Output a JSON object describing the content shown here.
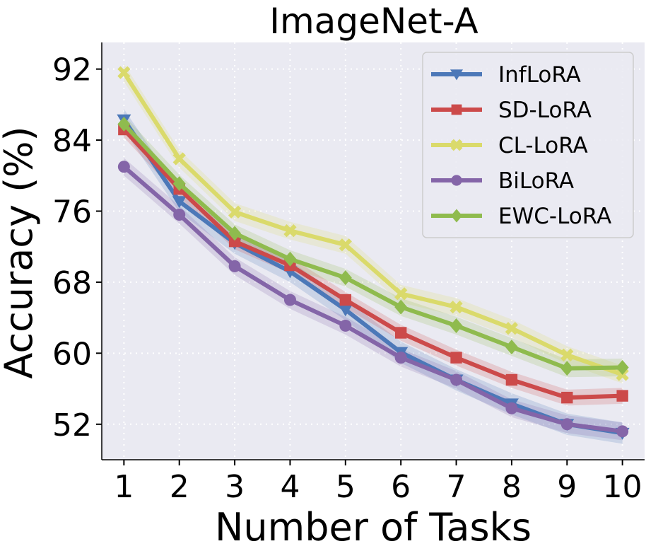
{
  "chart_data": {
    "type": "line",
    "title": "ImageNet-A",
    "xlabel": "Number of Tasks",
    "ylabel": "Accuracy (%)",
    "x": [
      1,
      2,
      3,
      4,
      5,
      6,
      7,
      8,
      9,
      10
    ],
    "xlim": [
      0.6,
      10.4
    ],
    "ylim": [
      48.0,
      95.0
    ],
    "xticks": [
      "1",
      "2",
      "3",
      "4",
      "5",
      "6",
      "7",
      "8",
      "9",
      "10"
    ],
    "yticks": [
      52,
      60,
      68,
      76,
      84,
      92
    ],
    "grid": true,
    "legend_position": "top-right",
    "series": [
      {
        "name": "InfLoRA",
        "marker": "triangle-down",
        "color": "#4c78b8",
        "values": [
          86.3,
          77.1,
          72.4,
          69.2,
          64.9,
          60.1,
          57.0,
          54.3,
          52.0,
          51.0
        ],
        "band": 1.2
      },
      {
        "name": "SD-LoRA",
        "marker": "square",
        "color": "#cc4a4a",
        "values": [
          85.2,
          78.5,
          72.6,
          69.9,
          66.0,
          62.3,
          59.5,
          57.0,
          55.0,
          55.2
        ],
        "band": 0.9
      },
      {
        "name": "CL-LoRA",
        "marker": "x",
        "color": "#dada6b",
        "values": [
          91.6,
          81.9,
          75.9,
          73.8,
          72.2,
          66.7,
          65.2,
          62.8,
          59.8,
          57.6
        ],
        "band": 1.0
      },
      {
        "name": "BiLoRA",
        "marker": "circle",
        "color": "#8465a8",
        "values": [
          81.0,
          75.6,
          69.8,
          66.0,
          63.1,
          59.5,
          57.0,
          53.8,
          52.0,
          51.2
        ],
        "band": 1.0
      },
      {
        "name": "EWC-LoRA",
        "marker": "diamond",
        "color": "#8fbb4e",
        "values": [
          85.8,
          79.1,
          73.5,
          70.6,
          68.5,
          65.2,
          63.1,
          60.7,
          58.3,
          58.4
        ],
        "band": 1.0
      }
    ]
  }
}
